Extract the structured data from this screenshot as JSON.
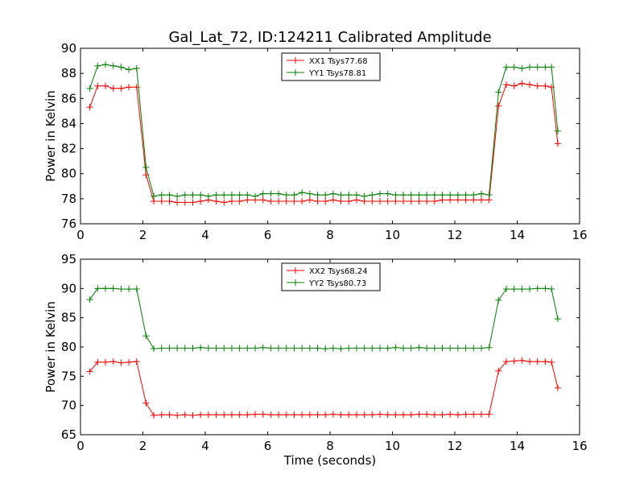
{
  "figure": {
    "title": "Gal_Lat_72, ID:124211 Calibrated Amplitude",
    "background": "#ffffff"
  },
  "chart_data": [
    {
      "type": "line",
      "title": "Gal_Lat_72, ID:124211 Calibrated Amplitude",
      "xlabel": "",
      "ylabel": "Power in Kelvin",
      "xlim": [
        0,
        16
      ],
      "ylim": [
        76,
        90
      ],
      "xticks": [
        0,
        2,
        4,
        6,
        8,
        10,
        12,
        14,
        16
      ],
      "yticks": [
        76,
        78,
        80,
        82,
        84,
        86,
        88,
        90
      ],
      "grid": false,
      "legend_position": "top-center",
      "x": [
        0.3,
        0.55,
        0.8,
        1.05,
        1.3,
        1.55,
        1.8,
        2.1,
        2.35,
        2.6,
        2.85,
        3.1,
        3.35,
        3.6,
        3.85,
        4.1,
        4.35,
        4.6,
        4.85,
        5.1,
        5.35,
        5.6,
        5.85,
        6.1,
        6.35,
        6.6,
        6.85,
        7.1,
        7.35,
        7.6,
        7.85,
        8.1,
        8.35,
        8.6,
        8.85,
        9.1,
        9.35,
        9.6,
        9.85,
        10.1,
        10.35,
        10.6,
        10.85,
        11.1,
        11.35,
        11.6,
        11.85,
        12.1,
        12.35,
        12.6,
        12.85,
        13.1,
        13.4,
        13.65,
        13.9,
        14.15,
        14.4,
        14.65,
        14.9,
        15.1,
        15.3
      ],
      "series": [
        {
          "name": "XX1 Tsys77.68",
          "color": "#ff0000",
          "values": [
            85.3,
            87.0,
            87.0,
            86.8,
            86.8,
            86.9,
            86.9,
            79.9,
            77.8,
            77.8,
            77.8,
            77.7,
            77.7,
            77.7,
            77.8,
            77.9,
            77.8,
            77.7,
            77.8,
            77.8,
            77.9,
            77.9,
            77.9,
            77.8,
            77.8,
            77.8,
            77.8,
            77.8,
            77.9,
            77.8,
            77.8,
            77.9,
            77.8,
            77.8,
            77.9,
            77.8,
            77.8,
            77.8,
            77.8,
            77.8,
            77.8,
            77.8,
            77.8,
            77.8,
            77.8,
            77.9,
            77.9,
            77.9,
            77.9,
            77.9,
            77.9,
            77.9,
            85.4,
            87.1,
            87.0,
            87.2,
            87.1,
            87.0,
            87.0,
            86.9,
            82.4
          ]
        },
        {
          "name": "YY1 Tsys78.81",
          "color": "#008000",
          "values": [
            86.8,
            88.6,
            88.7,
            88.6,
            88.5,
            88.3,
            88.4,
            80.5,
            78.2,
            78.3,
            78.3,
            78.2,
            78.3,
            78.3,
            78.3,
            78.2,
            78.3,
            78.3,
            78.3,
            78.3,
            78.3,
            78.2,
            78.4,
            78.4,
            78.4,
            78.3,
            78.3,
            78.5,
            78.4,
            78.3,
            78.3,
            78.4,
            78.3,
            78.3,
            78.3,
            78.2,
            78.3,
            78.4,
            78.4,
            78.3,
            78.3,
            78.3,
            78.3,
            78.3,
            78.3,
            78.3,
            78.3,
            78.3,
            78.3,
            78.3,
            78.4,
            78.3,
            86.5,
            88.5,
            88.5,
            88.4,
            88.5,
            88.5,
            88.5,
            88.5,
            83.4
          ]
        }
      ]
    },
    {
      "type": "line",
      "title": "",
      "xlabel": "Time (seconds)",
      "ylabel": "Power in Kelvin",
      "xlim": [
        0,
        16
      ],
      "ylim": [
        65,
        95
      ],
      "xticks": [
        0,
        2,
        4,
        6,
        8,
        10,
        12,
        14,
        16
      ],
      "yticks": [
        65,
        70,
        75,
        80,
        85,
        90,
        95
      ],
      "grid": false,
      "legend_position": "top-center",
      "x": [
        0.3,
        0.55,
        0.8,
        1.05,
        1.3,
        1.55,
        1.8,
        2.1,
        2.35,
        2.6,
        2.85,
        3.1,
        3.35,
        3.6,
        3.85,
        4.1,
        4.35,
        4.6,
        4.85,
        5.1,
        5.35,
        5.6,
        5.85,
        6.1,
        6.35,
        6.6,
        6.85,
        7.1,
        7.35,
        7.6,
        7.85,
        8.1,
        8.35,
        8.6,
        8.85,
        9.1,
        9.35,
        9.6,
        9.85,
        10.1,
        10.35,
        10.6,
        10.85,
        11.1,
        11.35,
        11.6,
        11.85,
        12.1,
        12.35,
        12.6,
        12.85,
        13.1,
        13.4,
        13.65,
        13.9,
        14.15,
        14.4,
        14.65,
        14.9,
        15.1,
        15.3
      ],
      "series": [
        {
          "name": "XX2 Tsys68.24",
          "color": "#ff0000",
          "values": [
            75.8,
            77.4,
            77.4,
            77.5,
            77.3,
            77.4,
            77.5,
            70.4,
            68.3,
            68.4,
            68.4,
            68.3,
            68.4,
            68.3,
            68.4,
            68.4,
            68.4,
            68.4,
            68.4,
            68.4,
            68.4,
            68.5,
            68.5,
            68.4,
            68.4,
            68.4,
            68.4,
            68.4,
            68.4,
            68.4,
            68.4,
            68.5,
            68.4,
            68.4,
            68.4,
            68.4,
            68.4,
            68.5,
            68.4,
            68.4,
            68.4,
            68.4,
            68.5,
            68.5,
            68.4,
            68.4,
            68.5,
            68.4,
            68.5,
            68.5,
            68.5,
            68.5,
            75.9,
            77.5,
            77.6,
            77.7,
            77.5,
            77.5,
            77.5,
            77.4,
            73.0
          ]
        },
        {
          "name": "YY2 Tsys80.73",
          "color": "#008000",
          "values": [
            88.1,
            90.0,
            90.0,
            90.0,
            89.9,
            89.9,
            89.9,
            81.9,
            79.7,
            79.8,
            79.8,
            79.8,
            79.8,
            79.8,
            79.9,
            79.8,
            79.8,
            79.8,
            79.8,
            79.8,
            79.8,
            79.8,
            79.9,
            79.8,
            79.8,
            79.8,
            79.8,
            79.8,
            79.8,
            79.8,
            79.7,
            79.8,
            79.7,
            79.8,
            79.8,
            79.8,
            79.8,
            79.8,
            79.8,
            79.9,
            79.8,
            79.8,
            79.9,
            79.8,
            79.8,
            79.8,
            79.8,
            79.8,
            79.8,
            79.8,
            79.8,
            79.9,
            88.0,
            89.9,
            89.9,
            89.9,
            89.9,
            90.0,
            90.0,
            89.9,
            84.8
          ]
        }
      ]
    }
  ]
}
